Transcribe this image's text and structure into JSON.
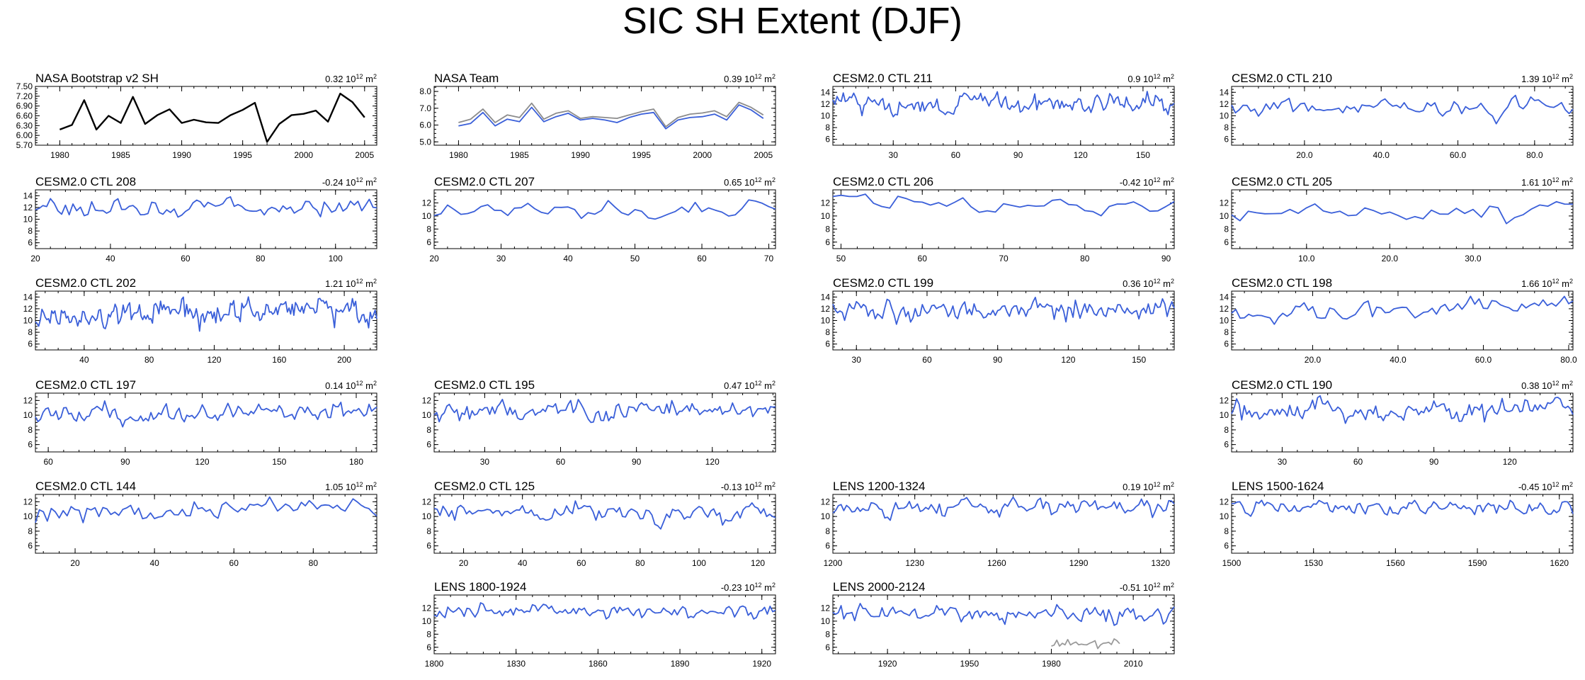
{
  "title": "SIC SH Extent (DJF)",
  "colors": {
    "obs": "#000000",
    "obs_alt": "#8c8c8c",
    "model": "#3a5fd9",
    "overlay": "#9a9a9a"
  },
  "chart_data": [
    {
      "type": "line",
      "title": "NASA Bootstrap v2 SH",
      "trend": "0.32",
      "trend_unit_exp": "12",
      "xlim": [
        1978,
        2006
      ],
      "ylim": [
        5.7,
        7.5
      ],
      "yticks": [
        5.7,
        6.0,
        6.3,
        6.6,
        6.9,
        7.2,
        7.5
      ],
      "ytick_labels": [
        "5.70",
        "6.00",
        "6.30",
        "6.60",
        "6.90",
        "7.20",
        "7.50"
      ],
      "xticks": [
        1980,
        1985,
        1990,
        1995,
        2000,
        2005
      ],
      "xtick_labels": [
        "1980",
        "1985",
        "1990",
        "1995",
        "2000",
        "2005"
      ],
      "series": [
        {
          "color_key": "obs",
          "x": [
            1980,
            1981,
            1982,
            1983,
            1984,
            1985,
            1986,
            1987,
            1988,
            1989,
            1990,
            1991,
            1992,
            1993,
            1994,
            1995,
            1996,
            1997,
            1998,
            1999,
            2000,
            2001,
            2002,
            2003,
            2004,
            2005
          ],
          "y": [
            6.18,
            6.32,
            7.08,
            6.18,
            6.6,
            6.38,
            7.18,
            6.35,
            6.62,
            6.8,
            6.38,
            6.48,
            6.4,
            6.38,
            6.62,
            6.78,
            7.0,
            5.8,
            6.35,
            6.62,
            6.66,
            6.76,
            6.42,
            7.28,
            7.02,
            6.55
          ]
        }
      ]
    },
    {
      "type": "line",
      "title": "NASA Team",
      "trend": "0.39",
      "trend_unit_exp": "12",
      "xlim": [
        1978,
        2006
      ],
      "ylim": [
        4.8,
        8.3
      ],
      "yticks": [
        5.0,
        6.0,
        7.0,
        8.0
      ],
      "ytick_labels": [
        "5.0",
        "6.0",
        "7.0",
        "8.0"
      ],
      "xticks": [
        1980,
        1985,
        1990,
        1995,
        2000,
        2005
      ],
      "xtick_labels": [
        "1980",
        "1985",
        "1990",
        "1995",
        "2000",
        "2005"
      ],
      "series": [
        {
          "color_key": "obs_alt",
          "x": [
            1980,
            1981,
            1982,
            1983,
            1984,
            1985,
            1986,
            1987,
            1988,
            1989,
            1990,
            1991,
            1992,
            1993,
            1994,
            1995,
            1996,
            1997,
            1998,
            1999,
            2000,
            2001,
            2002,
            2003,
            2004,
            2005
          ],
          "y": [
            6.15,
            6.35,
            6.95,
            6.15,
            6.6,
            6.45,
            7.3,
            6.35,
            6.7,
            6.85,
            6.4,
            6.5,
            6.45,
            6.4,
            6.6,
            6.8,
            6.95,
            5.9,
            6.45,
            6.65,
            6.72,
            6.85,
            6.5,
            7.35,
            7.05,
            6.6
          ]
        },
        {
          "color_key": "model",
          "x": [
            1980,
            1981,
            1982,
            1983,
            1984,
            1985,
            1986,
            1987,
            1988,
            1989,
            1990,
            1991,
            1992,
            1993,
            1994,
            1995,
            1996,
            1997,
            1998,
            1999,
            2000,
            2001,
            2002,
            2003,
            2004,
            2005
          ],
          "y": [
            5.95,
            6.1,
            6.75,
            5.95,
            6.35,
            6.2,
            7.05,
            6.2,
            6.5,
            6.7,
            6.3,
            6.4,
            6.3,
            6.15,
            6.45,
            6.65,
            6.75,
            5.78,
            6.3,
            6.45,
            6.5,
            6.65,
            6.3,
            7.2,
            6.9,
            6.4
          ]
        }
      ]
    },
    {
      "type": "line",
      "title": "CESM2.0 CTL 211",
      "trend": "0.9",
      "trend_unit_exp": "12",
      "xlim": [
        1,
        165
      ],
      "ylim": [
        5,
        15
      ],
      "yticks": [
        6,
        8,
        10,
        12,
        14
      ],
      "ytick_labels": [
        "6",
        "8",
        "10",
        "12",
        "14"
      ],
      "xticks": [
        30,
        60,
        90,
        120,
        150
      ],
      "xtick_labels": [
        "30",
        "60",
        "90",
        "120",
        "150"
      ],
      "series": [
        {
          "color_key": "model",
          "gen": {
            "seed": 211,
            "mean": 12.2,
            "amp": 0.8,
            "ramp": 0.4
          }
        }
      ]
    },
    {
      "type": "line",
      "title": "CESM2.0 CTL 210",
      "trend": "1.39",
      "trend_unit_exp": "12",
      "xlim": [
        1,
        90
      ],
      "ylim": [
        5,
        15
      ],
      "yticks": [
        6,
        8,
        10,
        12,
        14
      ],
      "ytick_labels": [
        "6",
        "8",
        "10",
        "12",
        "14"
      ],
      "xticks": [
        20,
        40,
        60,
        80
      ],
      "xtick_labels": [
        "20.0",
        "40.0",
        "60.0",
        "80.0"
      ],
      "series": [
        {
          "color_key": "model",
          "gen": {
            "seed": 210,
            "mean": 11.3,
            "amp": 0.7,
            "ramp": 1.4
          }
        }
      ]
    },
    {
      "type": "line",
      "title": "CESM2.0 CTL 208",
      "trend": "-0.24",
      "trend_unit_exp": "12",
      "xlim": [
        20,
        111
      ],
      "ylim": [
        5,
        15
      ],
      "yticks": [
        6,
        8,
        10,
        12,
        14
      ],
      "ytick_labels": [
        "6",
        "8",
        "10",
        "12",
        "14"
      ],
      "xticks": [
        20,
        40,
        60,
        80,
        100
      ],
      "xtick_labels": [
        "20",
        "40",
        "60",
        "80",
        "100"
      ],
      "series": [
        {
          "color_key": "model",
          "gen": {
            "seed": 208,
            "mean": 11.8,
            "amp": 0.7,
            "ramp": -0.3
          }
        }
      ]
    },
    {
      "type": "line",
      "title": "CESM2.0 CTL 207",
      "trend": "0.65",
      "trend_unit_exp": "12",
      "xlim": [
        20,
        71
      ],
      "ylim": [
        5,
        14
      ],
      "yticks": [
        6,
        8,
        10,
        12
      ],
      "ytick_labels": [
        "6",
        "8",
        "10",
        "12"
      ],
      "xticks": [
        20,
        30,
        40,
        50,
        60,
        70
      ],
      "xtick_labels": [
        "20",
        "30",
        "40",
        "50",
        "60",
        "70"
      ],
      "series": [
        {
          "color_key": "model",
          "gen": {
            "seed": 207,
            "mean": 11.3,
            "amp": 0.6,
            "ramp": 0.6
          }
        }
      ]
    },
    {
      "type": "line",
      "title": "CESM2.0 CTL 206",
      "trend": "-0.42",
      "trend_unit_exp": "12",
      "xlim": [
        49,
        91
      ],
      "ylim": [
        5,
        14
      ],
      "yticks": [
        6,
        8,
        10,
        12
      ],
      "ytick_labels": [
        "6",
        "8",
        "10",
        "12"
      ],
      "xticks": [
        50,
        60,
        70,
        80,
        90
      ],
      "xtick_labels": [
        "50",
        "60",
        "70",
        "80",
        "90"
      ],
      "series": [
        {
          "color_key": "model",
          "gen": {
            "seed": 206,
            "mean": 12.0,
            "amp": 0.6,
            "ramp": -0.4
          }
        }
      ]
    },
    {
      "type": "line",
      "title": "CESM2.0 CTL 205",
      "trend": "1.61",
      "trend_unit_exp": "12",
      "xlim": [
        1,
        42
      ],
      "ylim": [
        5,
        14
      ],
      "yticks": [
        6,
        8,
        10,
        12
      ],
      "ytick_labels": [
        "6",
        "8",
        "10",
        "12"
      ],
      "xticks": [
        10,
        20,
        30
      ],
      "xtick_labels": [
        "10.0",
        "20.0",
        "30.0"
      ],
      "series": [
        {
          "color_key": "model",
          "gen": {
            "seed": 205,
            "mean": 10.8,
            "amp": 0.6,
            "ramp": 1.5
          }
        }
      ]
    },
    {
      "type": "line",
      "title": "CESM2.0 CTL 202",
      "trend": "1.21",
      "trend_unit_exp": "12",
      "xlim": [
        10,
        220
      ],
      "ylim": [
        5,
        15
      ],
      "yticks": [
        6,
        8,
        10,
        12,
        14
      ],
      "ytick_labels": [
        "6",
        "8",
        "10",
        "12",
        "14"
      ],
      "xticks": [
        40,
        80,
        120,
        160,
        200
      ],
      "xtick_labels": [
        "40",
        "80",
        "120",
        "160",
        "200"
      ],
      "series": [
        {
          "color_key": "model",
          "gen": {
            "seed": 202,
            "mean": 11.4,
            "amp": 0.8,
            "ramp": 1.4
          }
        }
      ]
    },
    {
      "type": "line",
      "title": "CESM2.0 CTL 199",
      "trend": "0.36",
      "trend_unit_exp": "12",
      "xlim": [
        20,
        165
      ],
      "ylim": [
        5,
        15
      ],
      "yticks": [
        6,
        8,
        10,
        12,
        14
      ],
      "ytick_labels": [
        "6",
        "8",
        "10",
        "12",
        "14"
      ],
      "xticks": [
        30,
        60,
        90,
        120,
        150
      ],
      "xtick_labels": [
        "30",
        "60",
        "90",
        "120",
        "150"
      ],
      "series": [
        {
          "color_key": "model",
          "gen": {
            "seed": 199,
            "mean": 11.8,
            "amp": 0.8,
            "ramp": 0.4
          }
        }
      ]
    },
    {
      "type": "line",
      "title": "CESM2.0 CTL 198",
      "trend": "1.66",
      "trend_unit_exp": "12",
      "xlim": [
        1,
        81
      ],
      "ylim": [
        5,
        15
      ],
      "yticks": [
        6,
        8,
        10,
        12,
        14
      ],
      "ytick_labels": [
        "6",
        "8",
        "10",
        "12",
        "14"
      ],
      "xticks": [
        20,
        40,
        60,
        80
      ],
      "xtick_labels": [
        "20.0",
        "40.0",
        "60.0",
        "80.0"
      ],
      "series": [
        {
          "color_key": "model",
          "gen": {
            "seed": 198,
            "mean": 12.0,
            "amp": 0.7,
            "ramp": 2.0
          }
        }
      ]
    },
    {
      "type": "line",
      "title": "CESM2.0 CTL 197",
      "trend": "0.14",
      "trend_unit_exp": "12",
      "xlim": [
        55,
        188
      ],
      "ylim": [
        5,
        13
      ],
      "yticks": [
        6,
        8,
        10,
        12
      ],
      "ytick_labels": [
        "6",
        "8",
        "10",
        "12"
      ],
      "xticks": [
        60,
        90,
        120,
        150,
        180
      ],
      "xtick_labels": [
        "60",
        "90",
        "120",
        "150",
        "180"
      ],
      "series": [
        {
          "color_key": "model",
          "gen": {
            "seed": 197,
            "mean": 10.3,
            "amp": 0.6,
            "ramp": 0.2
          }
        }
      ]
    },
    {
      "type": "line",
      "title": "CESM2.0 CTL 195",
      "trend": "0.47",
      "trend_unit_exp": "12",
      "xlim": [
        10,
        145
      ],
      "ylim": [
        5,
        13
      ],
      "yticks": [
        6,
        8,
        10,
        12
      ],
      "ytick_labels": [
        "6",
        "8",
        "10",
        "12"
      ],
      "xticks": [
        30,
        60,
        90,
        120
      ],
      "xtick_labels": [
        "30",
        "60",
        "90",
        "120"
      ],
      "series": [
        {
          "color_key": "model",
          "gen": {
            "seed": 195,
            "mean": 10.6,
            "amp": 0.6,
            "ramp": 0.5
          }
        }
      ]
    },
    {
      "type": "line",
      "title": "CESM2.0 CTL 190",
      "trend": "0.38",
      "trend_unit_exp": "12",
      "xlim": [
        10,
        145
      ],
      "ylim": [
        5,
        13
      ],
      "yticks": [
        6,
        8,
        10,
        12
      ],
      "ytick_labels": [
        "6",
        "8",
        "10",
        "12"
      ],
      "xticks": [
        30,
        60,
        90,
        120
      ],
      "xtick_labels": [
        "30",
        "60",
        "90",
        "120"
      ],
      "series": [
        {
          "color_key": "model",
          "gen": {
            "seed": 190,
            "mean": 10.8,
            "amp": 0.6,
            "ramp": 0.6
          }
        }
      ]
    },
    {
      "type": "line",
      "title": "CESM2.0 CTL 144",
      "trend": "1.05",
      "trend_unit_exp": "12",
      "xlim": [
        10,
        96
      ],
      "ylim": [
        5,
        13
      ],
      "yticks": [
        6,
        8,
        10,
        12
      ],
      "ytick_labels": [
        "6",
        "8",
        "10",
        "12"
      ],
      "xticks": [
        20,
        40,
        60,
        80
      ],
      "xtick_labels": [
        "20",
        "40",
        "60",
        "80"
      ],
      "series": [
        {
          "color_key": "model",
          "gen": {
            "seed": 144,
            "mean": 10.7,
            "amp": 0.6,
            "ramp": 1.0
          }
        }
      ]
    },
    {
      "type": "line",
      "title": "CESM2.0 CTL 125",
      "trend": "-0.13",
      "trend_unit_exp": "12",
      "xlim": [
        10,
        126
      ],
      "ylim": [
        5,
        13
      ],
      "yticks": [
        6,
        8,
        10,
        12
      ],
      "ytick_labels": [
        "6",
        "8",
        "10",
        "12"
      ],
      "xticks": [
        20,
        40,
        60,
        80,
        100,
        120
      ],
      "xtick_labels": [
        "20",
        "40",
        "60",
        "80",
        "100",
        "120"
      ],
      "series": [
        {
          "color_key": "model",
          "gen": {
            "seed": 125,
            "mean": 10.4,
            "amp": 0.6,
            "ramp": -0.1
          }
        }
      ]
    },
    {
      "type": "line",
      "title": "LENS 1200-1324",
      "trend": "0.19",
      "trend_unit_exp": "12",
      "xlim": [
        1200,
        1325
      ],
      "ylim": [
        5,
        13
      ],
      "yticks": [
        6,
        8,
        10,
        12
      ],
      "ytick_labels": [
        "6",
        "8",
        "10",
        "12"
      ],
      "xticks": [
        1200,
        1230,
        1260,
        1290,
        1320
      ],
      "xtick_labels": [
        "1200",
        "1230",
        "1260",
        "1290",
        "1320"
      ],
      "series": [
        {
          "color_key": "model",
          "gen": {
            "seed": 1200,
            "mean": 11.3,
            "amp": 0.5,
            "ramp": 0.2
          }
        }
      ]
    },
    {
      "type": "line",
      "title": "LENS 1500-1624",
      "trend": "-0.45",
      "trend_unit_exp": "12",
      "xlim": [
        1500,
        1625
      ],
      "ylim": [
        5,
        13
      ],
      "yticks": [
        6,
        8,
        10,
        12
      ],
      "ytick_labels": [
        "6",
        "8",
        "10",
        "12"
      ],
      "xticks": [
        1500,
        1530,
        1560,
        1590,
        1620
      ],
      "xtick_labels": [
        "1500",
        "1530",
        "1560",
        "1590",
        "1620"
      ],
      "series": [
        {
          "color_key": "model",
          "gen": {
            "seed": 1500,
            "mean": 11.2,
            "amp": 0.5,
            "ramp": -0.4
          }
        }
      ]
    },
    {
      "type": "line",
      "title": "LENS 1800-1924",
      "trend": "-0.23",
      "trend_unit_exp": "12",
      "xlim": [
        1800,
        1925
      ],
      "ylim": [
        5,
        14
      ],
      "yticks": [
        6,
        8,
        10,
        12
      ],
      "ytick_labels": [
        "6",
        "8",
        "10",
        "12"
      ],
      "xticks": [
        1800,
        1830,
        1860,
        1890,
        1920
      ],
      "xtick_labels": [
        "1800",
        "1830",
        "1860",
        "1890",
        "1920"
      ],
      "series": [
        {
          "color_key": "model",
          "gen": {
            "seed": 1800,
            "mean": 11.4,
            "amp": 0.5,
            "ramp": -0.2
          }
        }
      ]
    },
    {
      "type": "line",
      "title": "LENS 2000-2124",
      "trend": "-0.51",
      "trend_unit_exp": "12",
      "xlim": [
        1900,
        2025
      ],
      "ylim": [
        5,
        14
      ],
      "yticks": [
        6,
        8,
        10,
        12
      ],
      "ytick_labels": [
        "6",
        "8",
        "10",
        "12"
      ],
      "xticks": [
        1920,
        1950,
        1980,
        2010
      ],
      "xtick_labels": [
        "1920",
        "1950",
        "1980",
        "2010"
      ],
      "series": [
        {
          "color_key": "model",
          "gen": {
            "seed": 2000,
            "mean": 11.3,
            "amp": 0.6,
            "ramp": -0.5
          }
        },
        {
          "color_key": "overlay",
          "x": [
            1980,
            1981,
            1982,
            1983,
            1984,
            1985,
            1986,
            1987,
            1988,
            1989,
            1990,
            1991,
            1992,
            1993,
            1994,
            1995,
            1996,
            1997,
            1998,
            1999,
            2000,
            2001,
            2002,
            2003,
            2004,
            2005
          ],
          "y": [
            6.18,
            6.32,
            7.08,
            6.18,
            6.6,
            6.38,
            7.18,
            6.35,
            6.62,
            6.8,
            6.38,
            6.48,
            6.4,
            6.38,
            6.62,
            6.78,
            7.0,
            5.8,
            6.35,
            6.62,
            6.66,
            6.76,
            6.42,
            7.28,
            7.02,
            6.55
          ]
        }
      ]
    }
  ]
}
